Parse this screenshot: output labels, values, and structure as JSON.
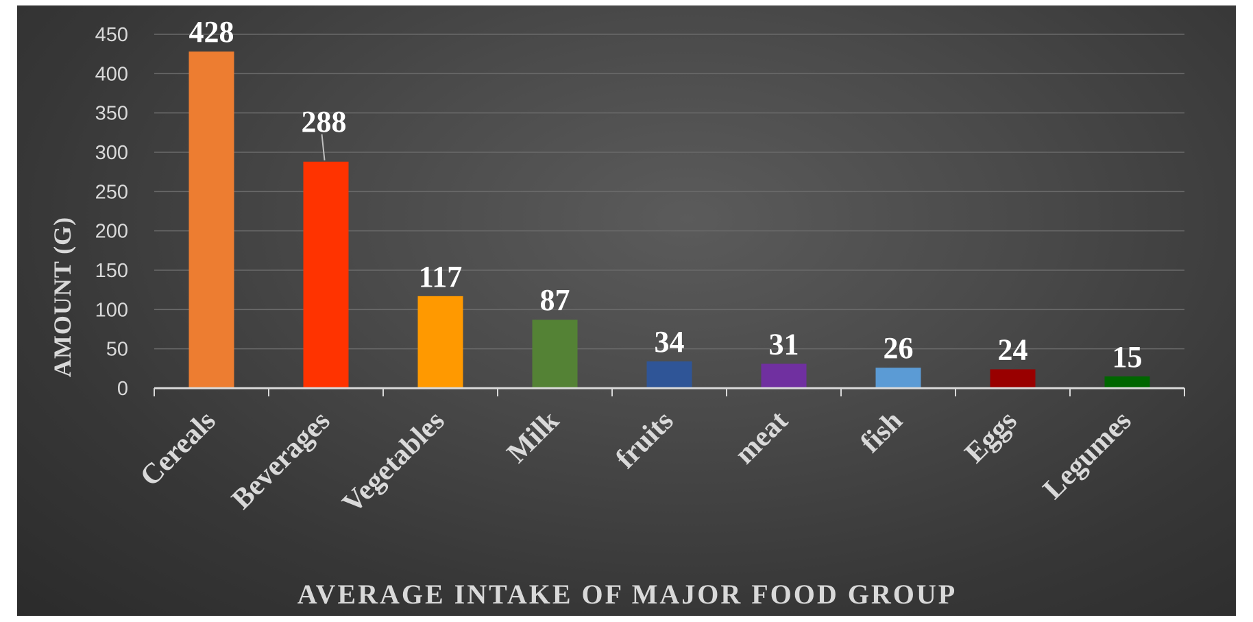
{
  "chart_data": {
    "type": "bar",
    "title": "",
    "xlabel": "AVERAGE INTAKE OF MAJOR FOOD GROUP",
    "ylabel": "AMOUNT (G)",
    "ylim": [
      0,
      450
    ],
    "yticks": [
      0,
      50,
      100,
      150,
      200,
      250,
      300,
      350,
      400,
      450
    ],
    "grid": true,
    "legend": "none",
    "categories": [
      "Cereals",
      "Beverages",
      "Vegetables",
      "Milk",
      "fruits",
      "meat",
      "fish",
      "Eggs",
      "Legumes"
    ],
    "values": [
      428,
      288,
      117,
      87,
      34,
      31,
      26,
      24,
      15
    ],
    "colors": [
      "#ED7D31",
      "#FF3300",
      "#FF9900",
      "#548235",
      "#2F5597",
      "#7030A0",
      "#5B9BD5",
      "#990000",
      "#006600"
    ]
  }
}
